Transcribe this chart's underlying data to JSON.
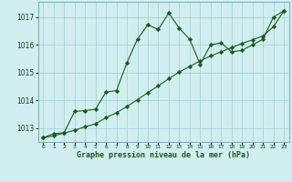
{
  "xlabel": "Graphe pression niveau de la mer (hPa)",
  "background_color": "#d0eef0",
  "grid_color": "#a8d4d8",
  "line_color": "#1a5c1a",
  "xlim": [
    -0.5,
    23.5
  ],
  "ylim": [
    1012.5,
    1017.55
  ],
  "yticks": [
    1013,
    1014,
    1015,
    1016,
    1017
  ],
  "xticks": [
    0,
    1,
    2,
    3,
    4,
    5,
    6,
    7,
    8,
    9,
    10,
    11,
    12,
    13,
    14,
    15,
    16,
    17,
    18,
    19,
    20,
    21,
    22,
    23
  ],
  "series1_x": [
    0,
    1,
    2,
    3,
    4,
    5,
    6,
    7,
    8,
    9,
    10,
    11,
    12,
    13,
    14,
    15,
    16,
    17,
    18,
    19,
    20,
    21,
    22,
    23
  ],
  "series1_y": [
    1012.65,
    1012.8,
    1012.83,
    1013.6,
    1013.63,
    1013.68,
    1014.3,
    1014.35,
    1015.35,
    1016.2,
    1016.72,
    1016.55,
    1017.15,
    1016.6,
    1016.2,
    1015.3,
    1016.0,
    1016.07,
    1015.75,
    1015.8,
    1016.0,
    1016.2,
    1017.0,
    1017.22
  ],
  "series2_x": [
    0,
    1,
    2,
    3,
    4,
    5,
    6,
    7,
    8,
    9,
    10,
    11,
    12,
    13,
    14,
    15,
    16,
    17,
    18,
    19,
    20,
    21,
    22,
    23
  ],
  "series2_y": [
    1012.65,
    1012.72,
    1012.82,
    1012.92,
    1013.05,
    1013.15,
    1013.38,
    1013.55,
    1013.78,
    1014.02,
    1014.28,
    1014.52,
    1014.78,
    1015.02,
    1015.22,
    1015.42,
    1015.6,
    1015.75,
    1015.9,
    1016.05,
    1016.18,
    1016.32,
    1016.65,
    1017.22
  ]
}
